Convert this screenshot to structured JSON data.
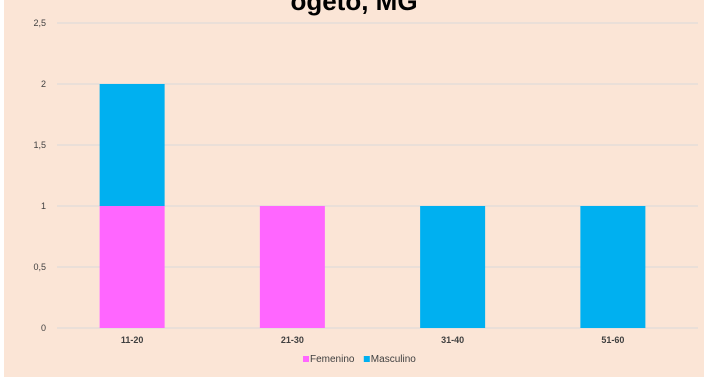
{
  "chart_data": {
    "type": "bar",
    "stacked": true,
    "title": "ogeto, MG",
    "categories": [
      "11-20",
      "21-30",
      "31-40",
      "51-60"
    ],
    "series": [
      {
        "name": "Femenino",
        "values": [
          1,
          1,
          0,
          0
        ],
        "color": "#ff66ff"
      },
      {
        "name": "Masculino",
        "values": [
          1,
          0,
          1,
          1
        ],
        "color": "#00b0f0"
      }
    ],
    "yticks": [
      "0",
      "0,5",
      "1",
      "1,5",
      "2",
      "2,5"
    ],
    "ylim": [
      0,
      2.5
    ],
    "grid": true,
    "legend_position": "bottom",
    "background": "#fbe5d6",
    "grid_color": "#d9d9d9"
  }
}
